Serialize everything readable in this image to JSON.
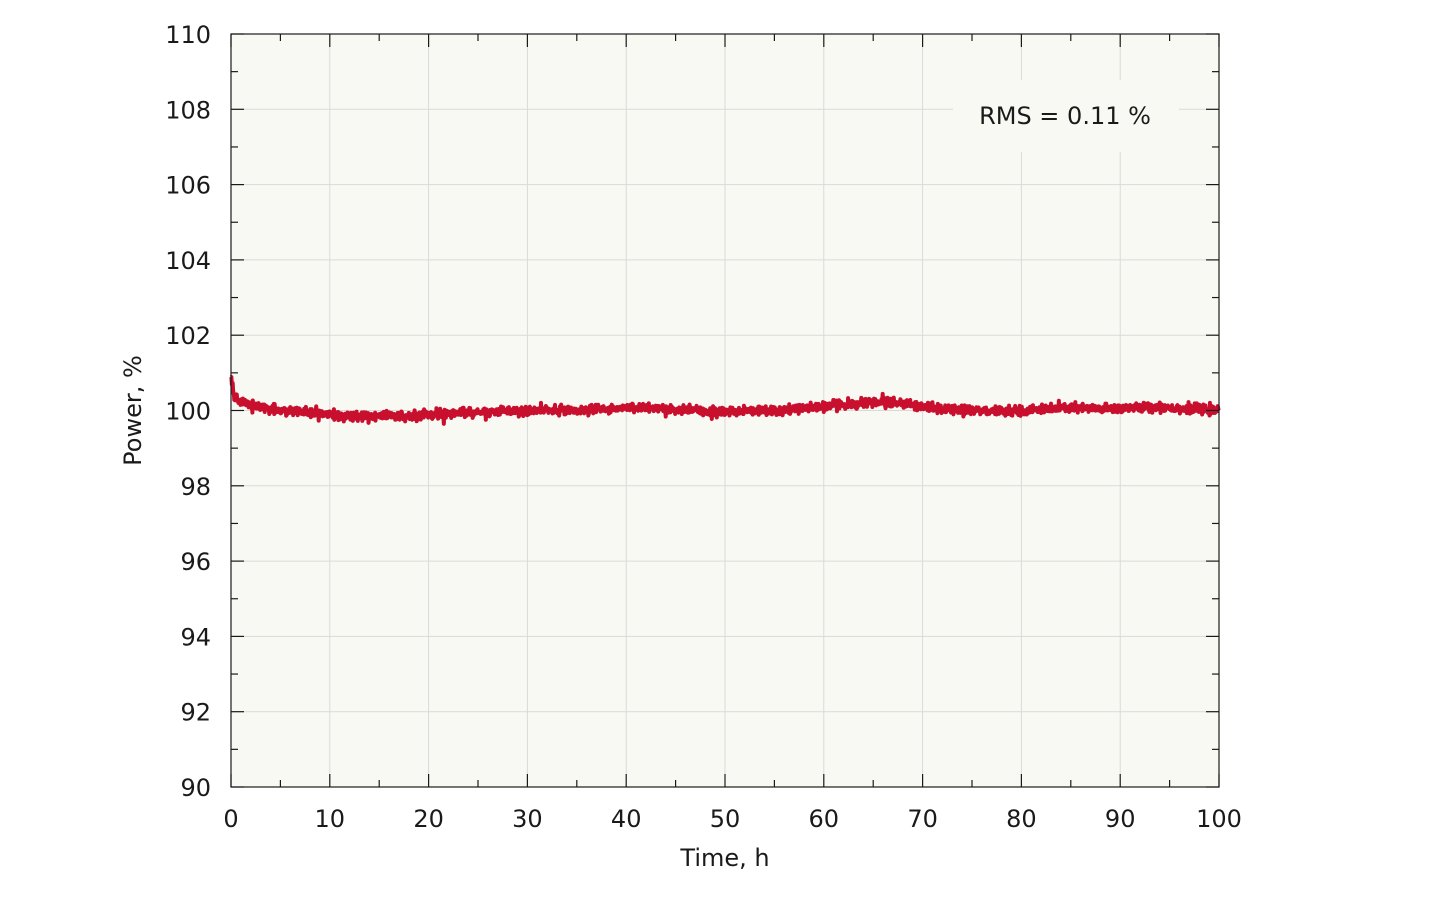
{
  "chart_data": {
    "type": "line",
    "xlabel": "Time, h",
    "ylabel": "Power, %",
    "xlim": [
      0,
      100
    ],
    "ylim": [
      90,
      110
    ],
    "x_ticks": [
      "0",
      "10",
      "20",
      "30",
      "40",
      "50",
      "60",
      "70",
      "80",
      "90",
      "100"
    ],
    "y_ticks": [
      "90",
      "92",
      "94",
      "96",
      "98",
      "100",
      "102",
      "104",
      "106",
      "108",
      "110"
    ],
    "x_minor_step": 5,
    "y_minor_step": 1,
    "grid": true,
    "annotation": "RMS = 0.11 %",
    "annotation_position": "top-right",
    "series": [
      {
        "x": [
          0,
          0.3,
          1,
          2,
          3,
          4,
          5,
          6,
          7,
          8,
          9,
          10,
          11,
          12,
          13,
          14,
          15,
          16,
          17,
          18,
          19,
          20,
          21,
          22,
          23,
          24,
          25,
          26,
          27,
          28,
          29,
          30,
          31,
          32,
          33,
          34,
          35,
          36,
          37,
          38,
          39,
          40,
          41,
          42,
          43,
          44,
          45,
          46,
          47,
          48,
          49,
          50,
          51,
          52,
          53,
          54,
          55,
          56,
          57,
          58,
          59,
          60,
          61,
          62,
          63,
          64,
          65,
          66,
          67,
          68,
          69,
          70,
          71,
          72,
          73,
          74,
          75,
          76,
          77,
          78,
          79,
          80,
          81,
          82,
          83,
          84,
          85,
          86,
          87,
          88,
          89,
          90,
          91,
          92,
          93,
          94,
          95,
          96,
          97,
          98,
          99,
          100
        ],
        "y": [
          100.9,
          100.35,
          100.25,
          100.15,
          100.1,
          100.05,
          100.0,
          100.0,
          99.97,
          99.93,
          99.9,
          99.88,
          99.87,
          99.86,
          99.85,
          99.85,
          99.86,
          99.85,
          99.84,
          99.85,
          99.88,
          99.9,
          99.92,
          99.94,
          99.95,
          99.95,
          99.96,
          99.96,
          99.97,
          99.98,
          99.98,
          99.98,
          99.99,
          100.0,
          100.0,
          100.0,
          100.01,
          100.02,
          100.03,
          100.04,
          100.05,
          100.06,
          100.07,
          100.08,
          100.07,
          100.05,
          100.03,
          100.02,
          100.0,
          99.98,
          99.97,
          99.97,
          99.98,
          99.99,
          100.0,
          100.0,
          99.99,
          100.01,
          100.04,
          100.07,
          100.1,
          100.12,
          100.14,
          100.16,
          100.18,
          100.2,
          100.22,
          100.22,
          100.21,
          100.2,
          100.15,
          100.1,
          100.06,
          100.03,
          100.01,
          100.0,
          100.0,
          99.99,
          99.98,
          99.98,
          99.99,
          100.0,
          100.01,
          100.03,
          100.05,
          100.06,
          100.07,
          100.06,
          100.05,
          100.04,
          100.05,
          100.06,
          100.08,
          100.07,
          100.09,
          100.1,
          100.08,
          100.06,
          100.04,
          100.03,
          100.01,
          100.0
        ],
        "noise_rms": 0.11,
        "color": "#c8102e",
        "line_width_class": "thick"
      }
    ],
    "colors": {
      "plot_background": "#f9f9f4",
      "grid": "#d9d9d9",
      "axis": "#1a1a1a",
      "series": "#c8102e"
    }
  }
}
